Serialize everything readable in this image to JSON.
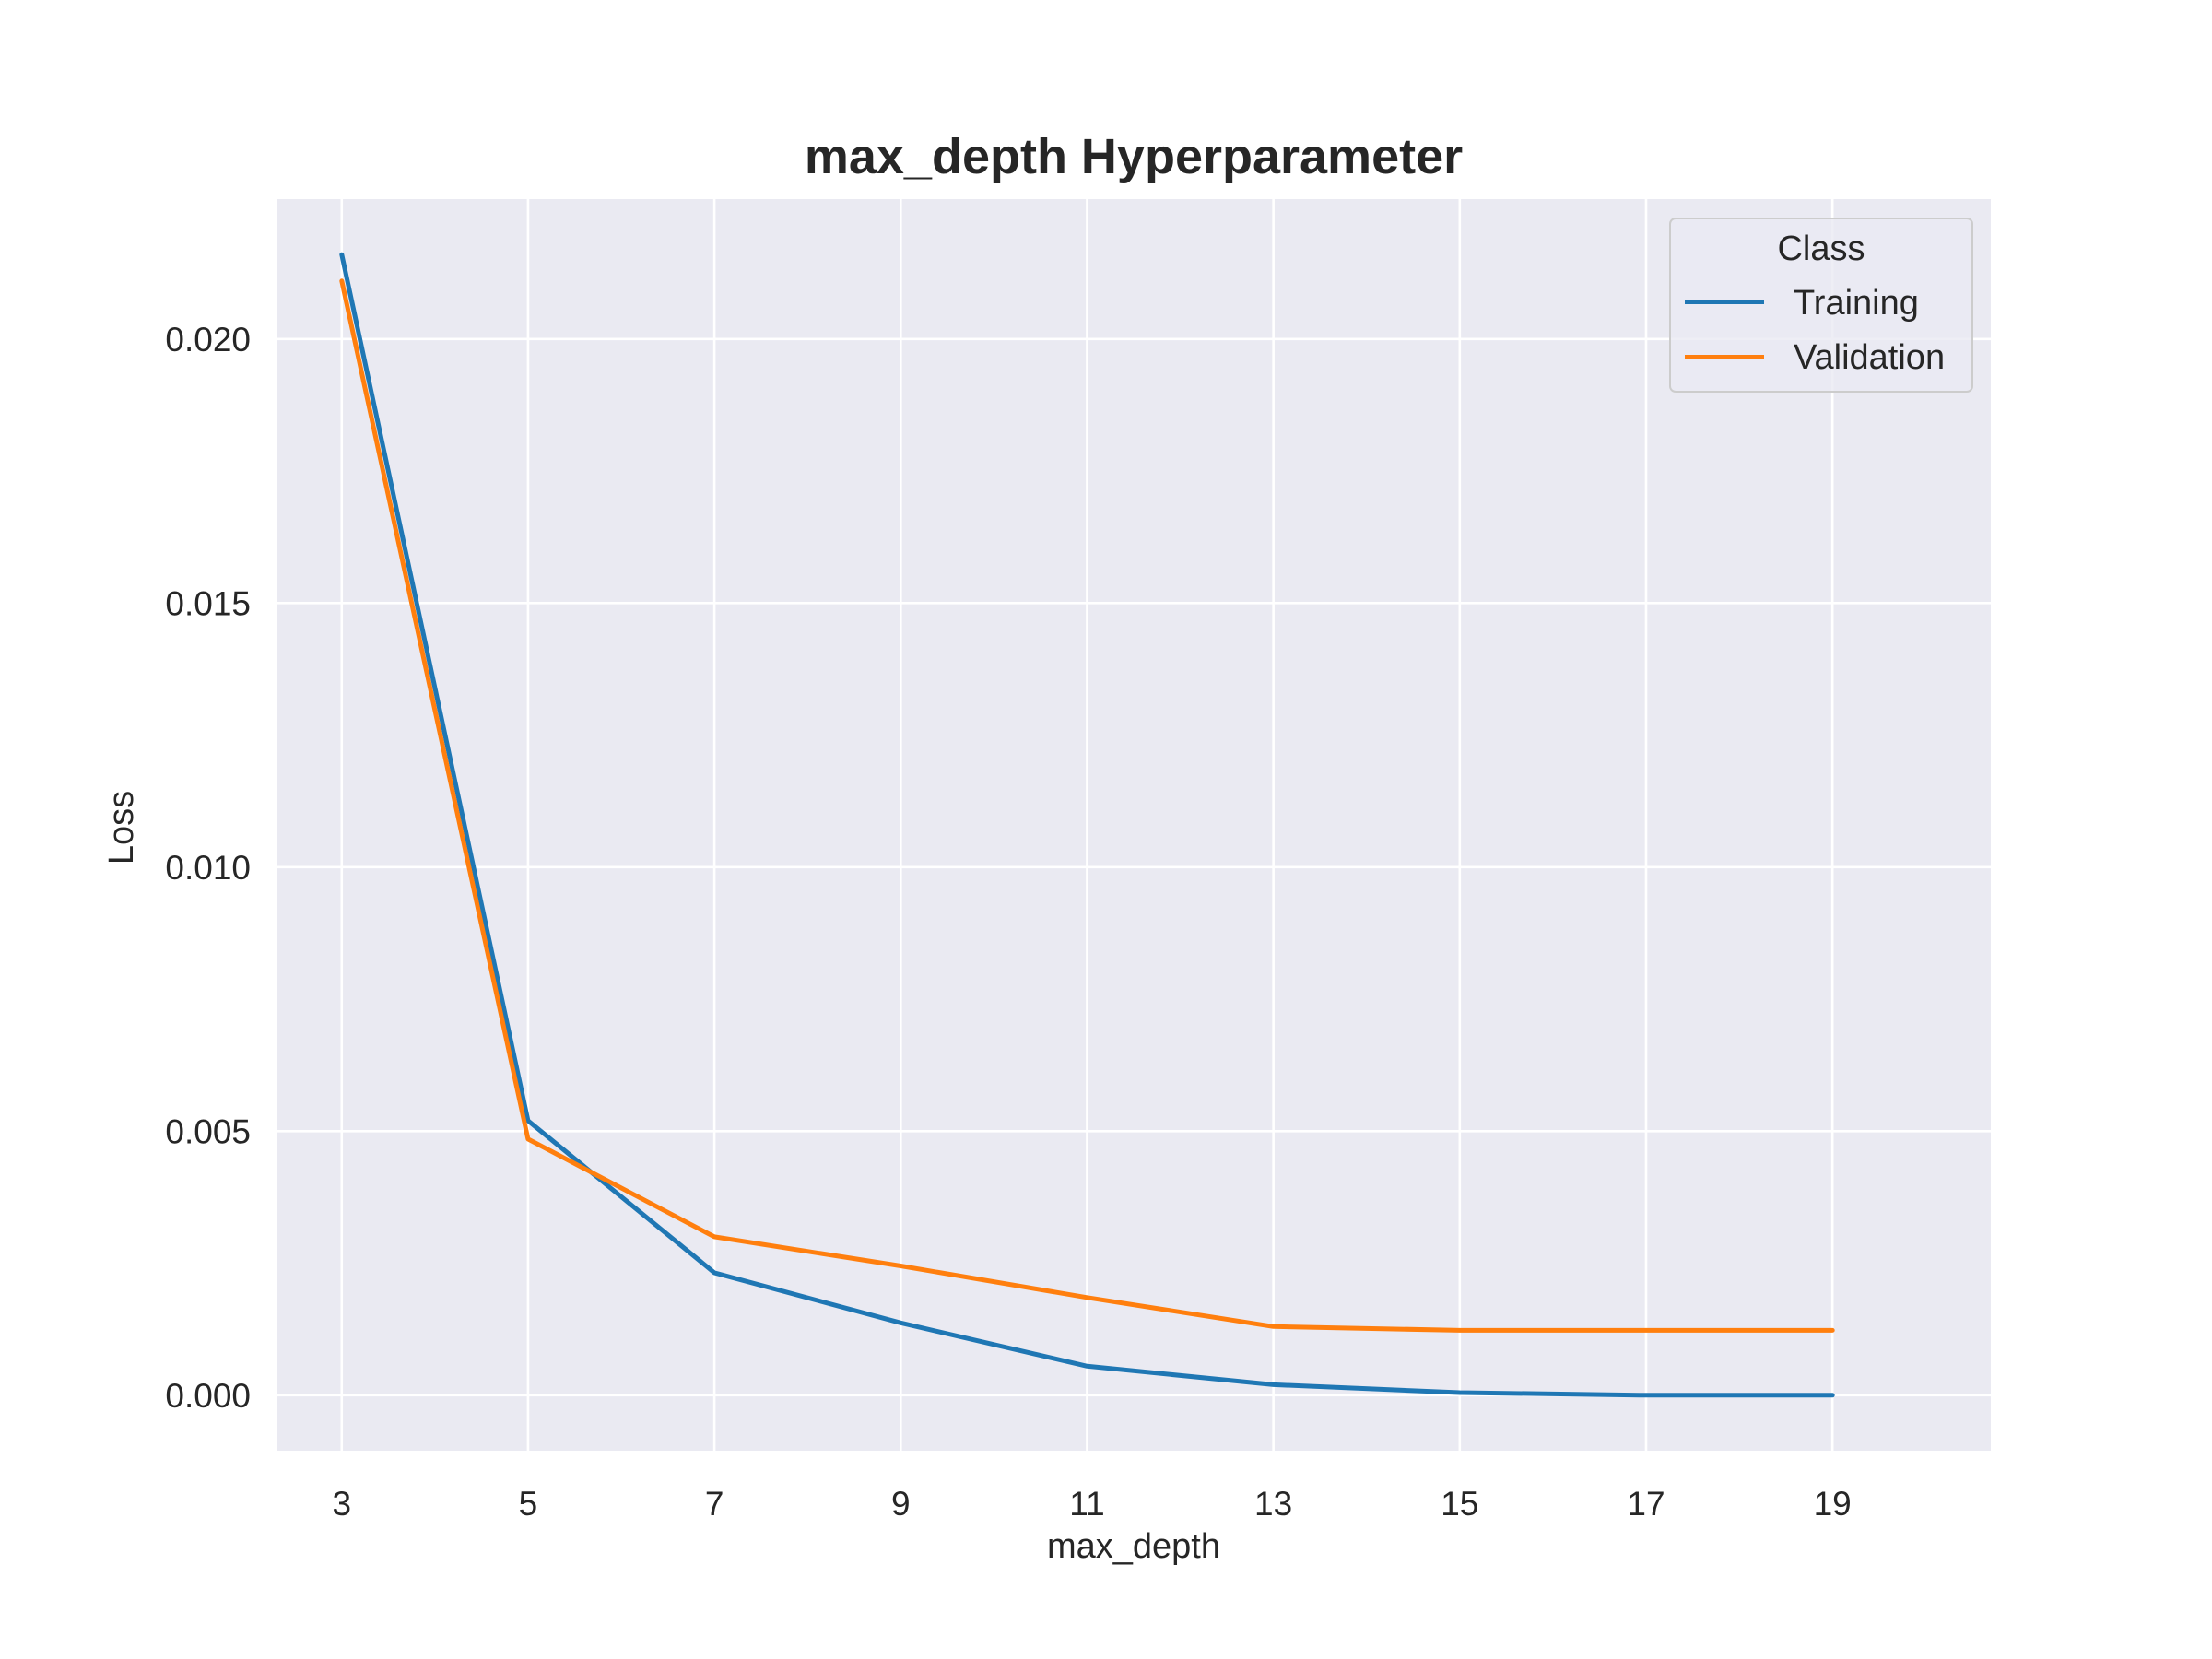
{
  "chart_data": {
    "type": "line",
    "title": "max_depth Hyperparameter",
    "xlabel": "max_depth",
    "ylabel": "Loss",
    "x": [
      3,
      5,
      7,
      9,
      11,
      13,
      15,
      17,
      19
    ],
    "xticks": [
      "3",
      "5",
      "7",
      "9",
      "11",
      "13",
      "15",
      "17",
      "19"
    ],
    "yticks": [
      "0.000",
      "0.005",
      "0.010",
      "0.015",
      "0.020"
    ],
    "ytick_values": [
      0,
      0.005,
      0.01,
      0.015,
      0.02
    ],
    "xlim": [
      2.3,
      20.7
    ],
    "ylim": [
      -0.00105,
      0.02265
    ],
    "grid": true,
    "legend": {
      "title": "Class",
      "placement": "top-right"
    },
    "series": [
      {
        "name": "Training",
        "color": "#1f77b4",
        "values": [
          0.0216,
          0.0052,
          0.00232,
          0.00137,
          0.00055,
          0.0002,
          5e-05,
          0.0,
          0.0
        ]
      },
      {
        "name": "Validation",
        "color": "#ff7f0e",
        "values": [
          0.0211,
          0.00485,
          0.003,
          0.00245,
          0.00185,
          0.0013,
          0.00123,
          0.00123,
          0.00123
        ]
      }
    ],
    "colors": {
      "plot_background": "#eaeaf2",
      "grid": "#ffffff",
      "text": "#262626"
    }
  }
}
